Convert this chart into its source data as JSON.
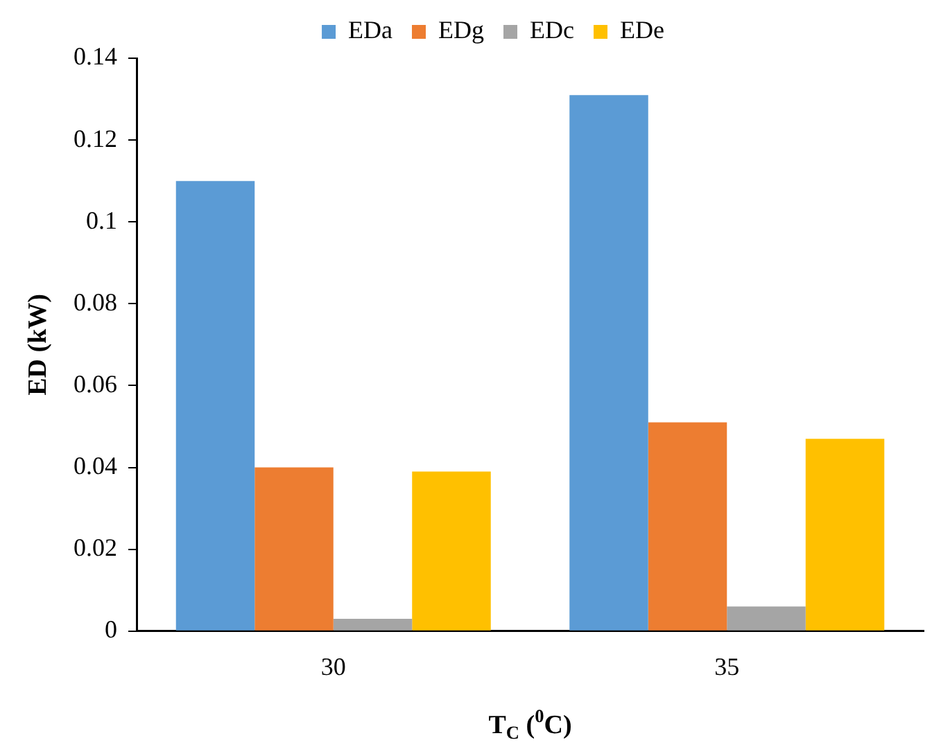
{
  "chart_data": {
    "type": "bar",
    "xlabel": "T$_{C}$ ($^{0}$C)",
    "ylabel": "ED (kW)",
    "categories": [
      "30",
      "35"
    ],
    "series": [
      {
        "name": "EDa",
        "color": "#5b9bd5",
        "values": [
          0.11,
          0.131
        ]
      },
      {
        "name": "EDg",
        "color": "#ed7d31",
        "values": [
          0.04,
          0.051
        ]
      },
      {
        "name": "EDc",
        "color": "#a5a5a5",
        "values": [
          0.003,
          0.006
        ]
      },
      {
        "name": "EDe",
        "color": "#ffc000",
        "values": [
          0.039,
          0.047
        ]
      }
    ],
    "ylim": [
      0,
      0.14
    ],
    "yticks": [
      0,
      0.02,
      0.04,
      0.06,
      0.08,
      0.1,
      0.12,
      0.14
    ],
    "grid": false,
    "legend": "top"
  }
}
